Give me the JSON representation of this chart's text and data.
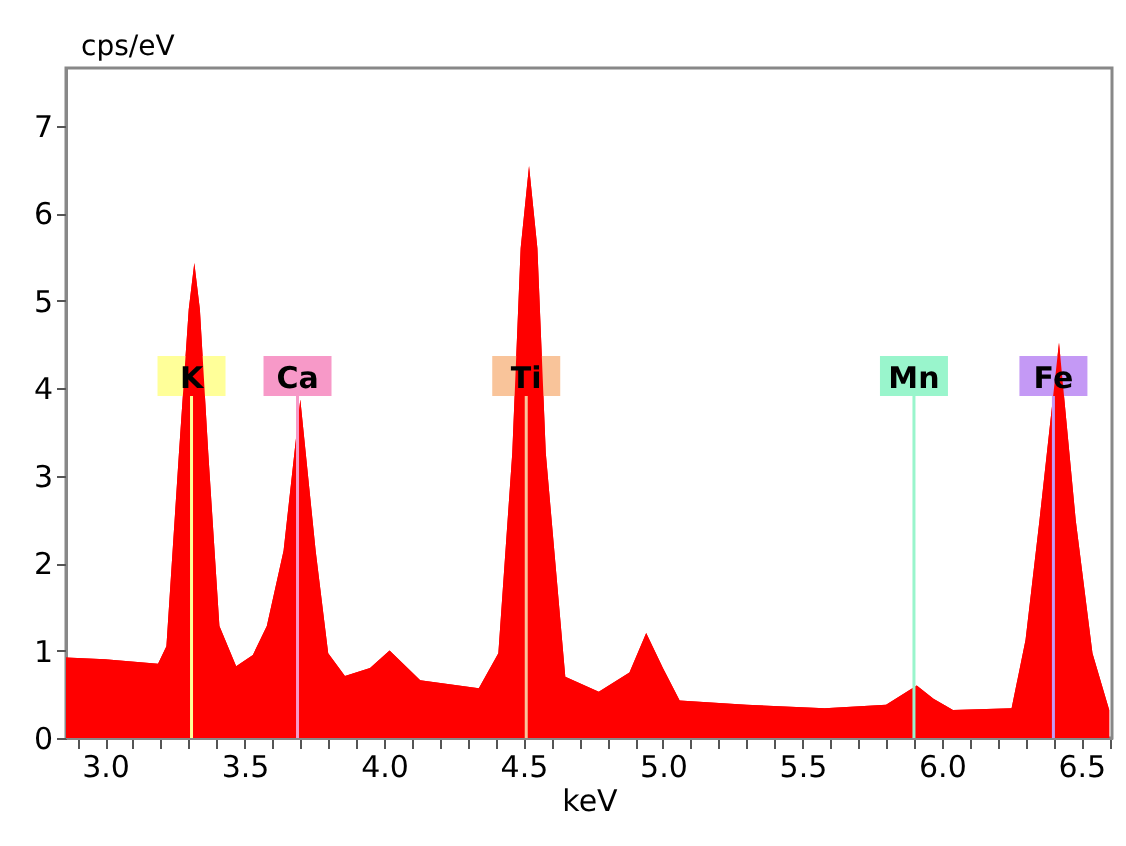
{
  "chart_data": {
    "type": "area",
    "xlabel": "keV",
    "ylabel": "cps/eV",
    "x": [
      2.86,
      3.0,
      3.19,
      3.22,
      3.265,
      3.3,
      3.32,
      3.34,
      3.37,
      3.41,
      3.47,
      3.53,
      3.58,
      3.64,
      3.7,
      3.755,
      3.8,
      3.86,
      3.95,
      4.02,
      4.13,
      4.34,
      4.41,
      4.46,
      4.49,
      4.52,
      4.55,
      4.58,
      4.65,
      4.77,
      4.88,
      4.94,
      5.0,
      5.06,
      5.3,
      5.58,
      5.8,
      5.91,
      5.97,
      6.04,
      6.25,
      6.3,
      6.35,
      6.42,
      6.48,
      6.54,
      6.6
    ],
    "series": [
      {
        "color": "#ff0000",
        "values": [
          0.92,
          0.9,
          0.85,
          1.05,
          3.26,
          4.9,
          5.43,
          4.9,
          3.26,
          1.28,
          0.82,
          0.95,
          1.28,
          2.14,
          3.87,
          2.14,
          0.97,
          0.71,
          0.8,
          1.0,
          0.66,
          0.57,
          0.97,
          3.26,
          5.6,
          6.54,
          5.6,
          3.26,
          0.7,
          0.53,
          0.75,
          1.2,
          0.8,
          0.43,
          0.38,
          0.34,
          0.38,
          0.6,
          0.45,
          0.32,
          0.34,
          1.12,
          2.49,
          4.52,
          2.49,
          0.97,
          0.32
        ]
      }
    ],
    "xlim": [
      2.86,
      6.61
    ],
    "ylim": [
      0,
      7.66
    ],
    "xticks": [
      {
        "value": 2.9,
        "label": null
      },
      {
        "value": 3.0,
        "label": "3.0"
      },
      {
        "value": 3.1,
        "label": null
      },
      {
        "value": 3.2,
        "label": null
      },
      {
        "value": 3.3,
        "label": null
      },
      {
        "value": 3.4,
        "label": null
      },
      {
        "value": 3.5,
        "label": "3.5"
      },
      {
        "value": 3.6,
        "label": null
      },
      {
        "value": 3.7,
        "label": null
      },
      {
        "value": 3.8,
        "label": null
      },
      {
        "value": 3.9,
        "label": null
      },
      {
        "value": 4.0,
        "label": "4.0"
      },
      {
        "value": 4.1,
        "label": null
      },
      {
        "value": 4.2,
        "label": null
      },
      {
        "value": 4.3,
        "label": null
      },
      {
        "value": 4.4,
        "label": null
      },
      {
        "value": 4.5,
        "label": "4.5"
      },
      {
        "value": 4.6,
        "label": null
      },
      {
        "value": 4.7,
        "label": null
      },
      {
        "value": 4.8,
        "label": null
      },
      {
        "value": 4.9,
        "label": null
      },
      {
        "value": 5.0,
        "label": "5.0"
      },
      {
        "value": 5.1,
        "label": null
      },
      {
        "value": 5.2,
        "label": null
      },
      {
        "value": 5.3,
        "label": null
      },
      {
        "value": 5.4,
        "label": null
      },
      {
        "value": 5.5,
        "label": "5.5"
      },
      {
        "value": 5.6,
        "label": null
      },
      {
        "value": 5.7,
        "label": null
      },
      {
        "value": 5.8,
        "label": null
      },
      {
        "value": 5.9,
        "label": null
      },
      {
        "value": 6.0,
        "label": "6.0"
      },
      {
        "value": 6.1,
        "label": null
      },
      {
        "value": 6.2,
        "label": null
      },
      {
        "value": 6.3,
        "label": null
      },
      {
        "value": 6.4,
        "label": null
      },
      {
        "value": 6.5,
        "label": "6.5"
      },
      {
        "value": 6.6,
        "label": null
      }
    ],
    "yticks": [
      0,
      1,
      2,
      3,
      4,
      5,
      6,
      7
    ],
    "ref_lines": [
      {
        "axis": "x",
        "value": 3.31,
        "label": "K",
        "color": "#ffff99"
      },
      {
        "axis": "x",
        "value": 3.69,
        "label": "Ca",
        "color": "#f799c8"
      },
      {
        "axis": "x",
        "value": 4.51,
        "label": "Ti",
        "color": "#f9c49a"
      },
      {
        "axis": "x",
        "value": 5.9,
        "label": "Mn",
        "color": "#99f5cc"
      },
      {
        "axis": "x",
        "value": 6.4,
        "label": "Fe",
        "color": "#c499f5"
      }
    ],
    "grid": false
  }
}
